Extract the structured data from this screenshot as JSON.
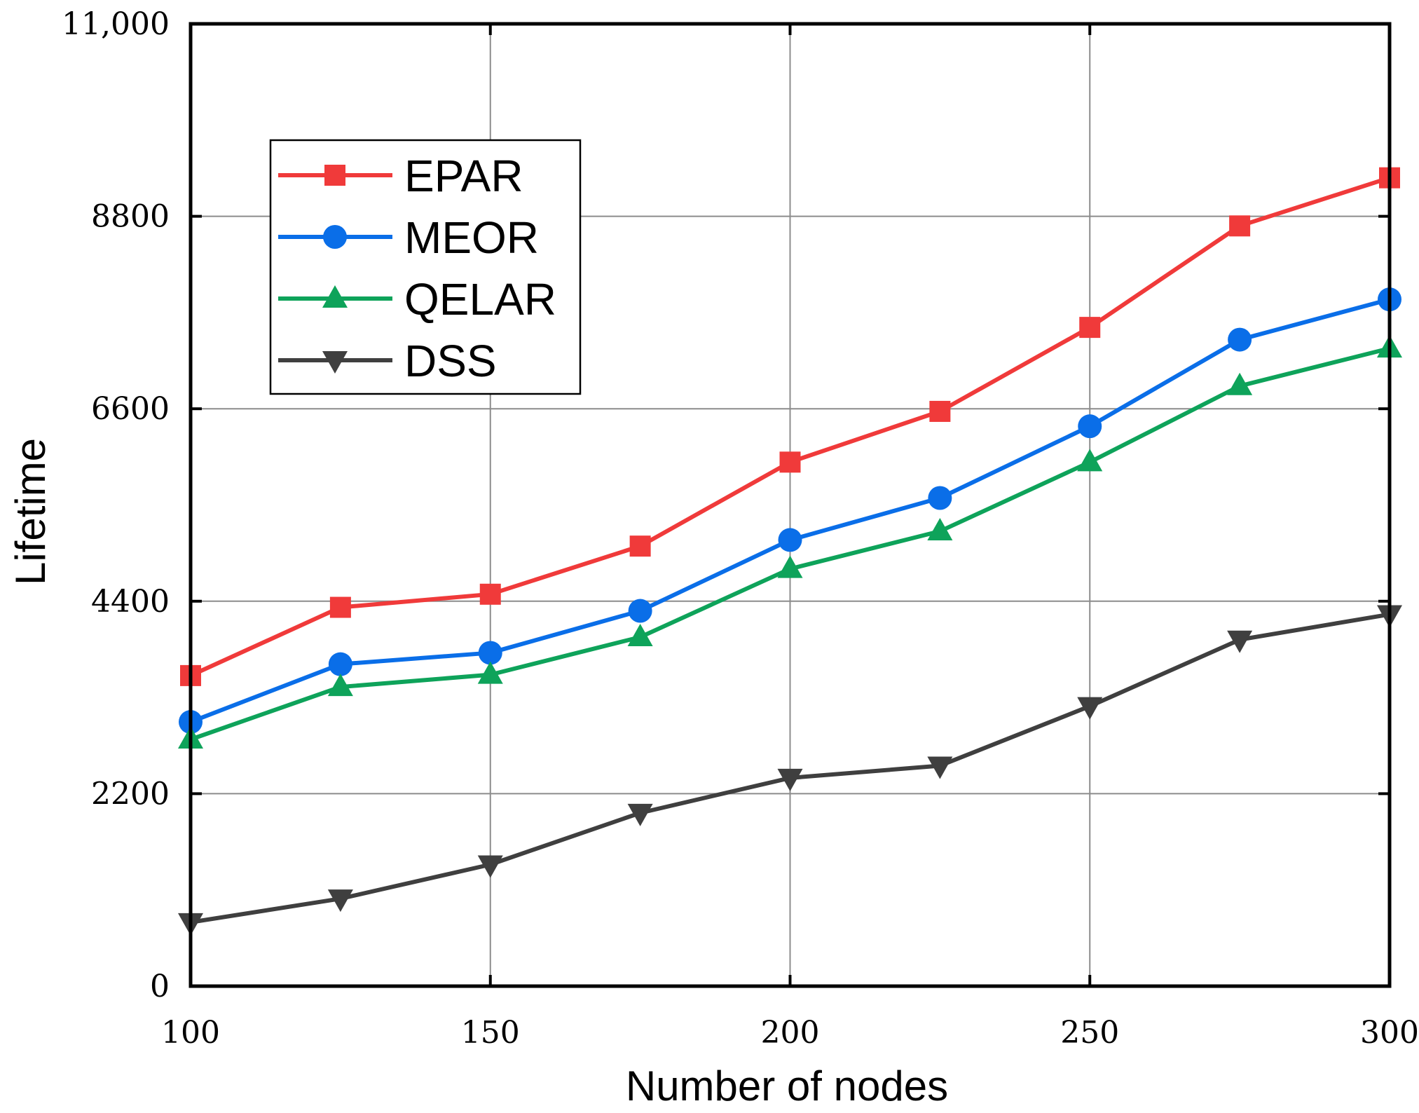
{
  "chart_data": {
    "type": "line",
    "title": "",
    "xlabel": "Number of nodes",
    "ylabel": "Lifetime",
    "xlim": [
      100,
      300
    ],
    "ylim": [
      0,
      11000
    ],
    "x_ticks": [
      100,
      150,
      200,
      250,
      300
    ],
    "x_tick_labels": [
      "100",
      "150",
      "200",
      "250",
      "300"
    ],
    "y_ticks": [
      0,
      2200,
      4400,
      6600,
      8800,
      11000
    ],
    "y_tick_labels": [
      "0",
      "2200",
      "4400",
      "6600",
      "8800",
      "11,000"
    ],
    "grid": true,
    "legend_position": "upper-left",
    "x": [
      100,
      125,
      150,
      175,
      200,
      225,
      250,
      275,
      300
    ],
    "series": [
      {
        "name": "EPAR",
        "color": "#f03a3a",
        "marker": "square",
        "values": [
          3550,
          4330,
          4480,
          5030,
          5990,
          6570,
          7530,
          8690,
          9240
        ]
      },
      {
        "name": "MEOR",
        "color": "#0a6ee8",
        "marker": "circle",
        "values": [
          3020,
          3680,
          3810,
          4290,
          5100,
          5580,
          6400,
          7390,
          7850
        ]
      },
      {
        "name": "QELAR",
        "color": "#0ea35a",
        "marker": "triangle-up",
        "values": [
          2820,
          3420,
          3560,
          3990,
          4770,
          5200,
          5990,
          6860,
          7290
        ]
      },
      {
        "name": "DSS",
        "color": "#3f3f3f",
        "marker": "triangle-down",
        "values": [
          730,
          1000,
          1390,
          1980,
          2380,
          2520,
          3200,
          3960,
          4250
        ]
      }
    ]
  }
}
